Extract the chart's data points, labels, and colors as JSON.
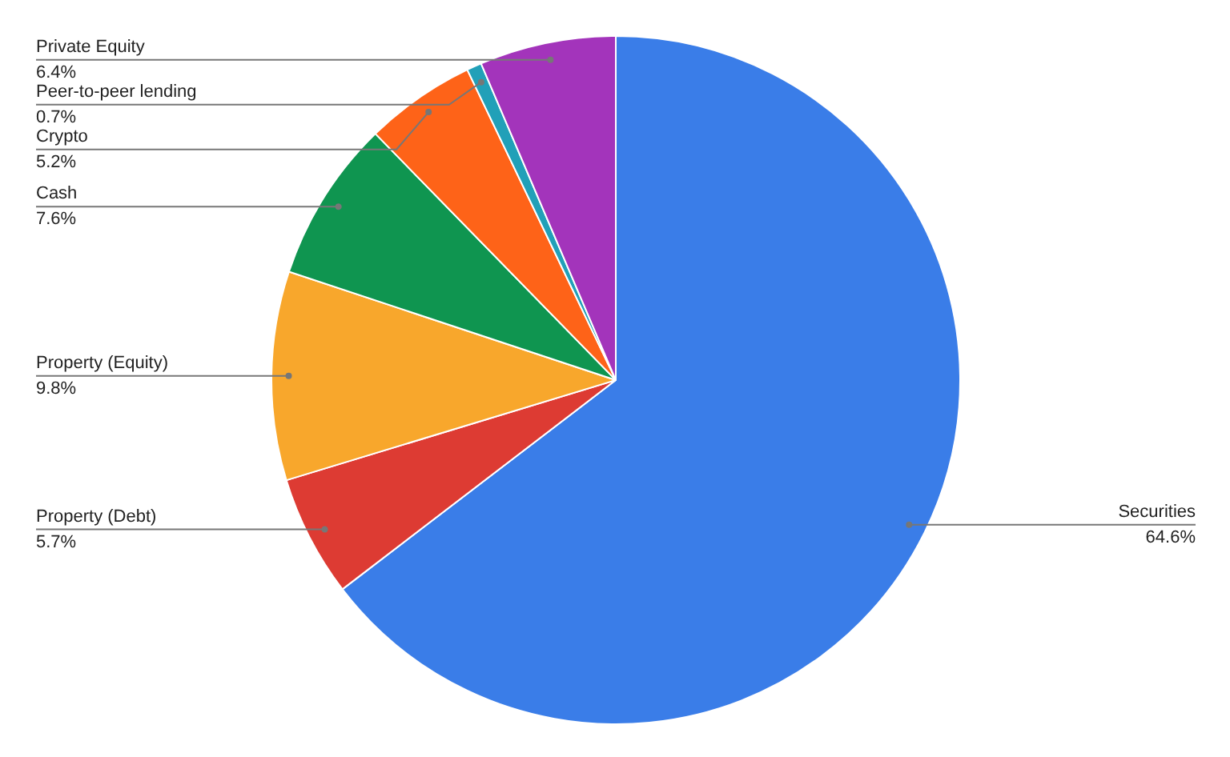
{
  "chart_data": {
    "type": "pie",
    "categories": [
      "Securities",
      "Property (Debt)",
      "Property (Equity)",
      "Cash",
      "Crypto",
      "Peer-to-peer lending",
      "Private Equity"
    ],
    "values": [
      64.6,
      5.7,
      9.8,
      7.6,
      5.2,
      0.7,
      6.4
    ],
    "value_labels": [
      "64.6%",
      "5.7%",
      "9.8%",
      "7.6%",
      "5.2%",
      "0.7%",
      "6.4%"
    ],
    "colors": [
      "#3a7de8",
      "#dd3b33",
      "#f8a72c",
      "#0f9550",
      "#fe6318",
      "#21a0b8",
      "#a334bb"
    ],
    "legend": false
  }
}
